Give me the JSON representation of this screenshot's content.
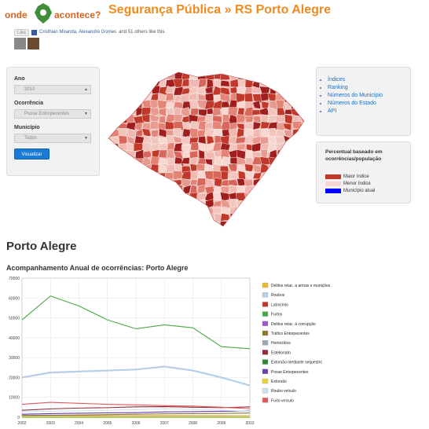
{
  "header": {
    "logo_left": "onde",
    "logo_right": "acontece?",
    "title": "Segurança Pública » RS Porto Alegre"
  },
  "like_bar": {
    "button": "Like",
    "text_names": "Cristhian Miranda, Alexandre Gomes",
    "text_rest": "and 51 others like this."
  },
  "filters": {
    "ano_label": "Ano",
    "ano_value": "2010",
    "ocorrencia_label": "Ocorrência",
    "ocorrencia_value": "Posse Entorpecentes",
    "municipio_label": "Município",
    "municipio_value": "Todos",
    "submit": "Visualizar"
  },
  "links": [
    "Índices",
    "Ranking",
    "Números do Município",
    "Números do Estado",
    "API"
  ],
  "map_legend": {
    "title": "Percentual baseado em ocorrências/população",
    "items": [
      {
        "label": "Maior índice",
        "color": "#c0392b"
      },
      {
        "label": "Menor índice",
        "color": "#f7d7cf"
      },
      {
        "label": "Município atual",
        "color": "#0000ff"
      }
    ]
  },
  "section_title": "Porto Alegre",
  "chart_title": "Acompanhamento Anual de ocorrências: Porto Alegre",
  "chart_data": {
    "type": "line",
    "x": [
      2002,
      2003,
      2004,
      2005,
      2006,
      2007,
      2008,
      2009,
      2010
    ],
    "ylim": [
      0,
      70000
    ],
    "yticks": [
      0,
      10000,
      20000,
      30000,
      40000,
      50000,
      60000,
      70000
    ],
    "grid": true,
    "legend_position": "right",
    "series": [
      {
        "name": "Delitos relac. a armas e munições",
        "color": "#e8b830",
        "values": [
          700,
          800,
          800,
          750,
          750,
          800,
          800,
          750,
          700
        ]
      },
      {
        "name": "Roubos",
        "color": "#b8cfe6",
        "values": [
          20000,
          22500,
          23000,
          23500,
          24000,
          25500,
          23500,
          20000,
          16000
        ]
      },
      {
        "name": "Latrocínio",
        "color": "#c0392b",
        "values": [
          60,
          60,
          55,
          60,
          50,
          60,
          55,
          50,
          45
        ]
      },
      {
        "name": "Furtos",
        "color": "#4aa84a",
        "values": [
          49000,
          61000,
          56000,
          49000,
          44500,
          46500,
          45000,
          35500,
          34500
        ]
      },
      {
        "name": "Delitos relac. à corrupção",
        "color": "#9b59c8",
        "values": [
          100,
          120,
          110,
          120,
          100,
          110,
          100,
          100,
          90
        ]
      },
      {
        "name": "Tráfico Entorpecentes",
        "color": "#8a7a2a",
        "values": [
          900,
          1000,
          1100,
          1300,
          1500,
          1700,
          1800,
          1900,
          2100
        ]
      },
      {
        "name": "Homicídios",
        "color": "#9aa8b8",
        "values": [
          400,
          420,
          430,
          440,
          420,
          450,
          460,
          440,
          420
        ]
      },
      {
        "name": "Estelionato",
        "color": "#8e2a3a",
        "values": [
          3500,
          4200,
          4600,
          4800,
          5200,
          5300,
          5000,
          4800,
          5200
        ]
      },
      {
        "name": "Extorsão mediante sequestro",
        "color": "#2e8a3a",
        "values": [
          10,
          12,
          10,
          8,
          8,
          9,
          8,
          7,
          6
        ]
      },
      {
        "name": "Posse Entorpecentes",
        "color": "#6a3fb0",
        "values": [
          1500,
          1800,
          2000,
          2200,
          2300,
          2700,
          2800,
          3000,
          3100
        ]
      },
      {
        "name": "Extorsão",
        "color": "#e6d23a",
        "values": [
          200,
          220,
          210,
          230,
          220,
          240,
          230,
          220,
          210
        ]
      },
      {
        "name": "Roubo veículo",
        "color": "#c9e6ef",
        "values": [
          2800,
          3000,
          3200,
          3500,
          3800,
          4200,
          4000,
          3600,
          2900
        ]
      },
      {
        "name": "Furto veículo",
        "color": "#e05a5a",
        "values": [
          6500,
          7500,
          7000,
          6500,
          6200,
          5800,
          5600,
          5000,
          4300
        ]
      }
    ]
  }
}
